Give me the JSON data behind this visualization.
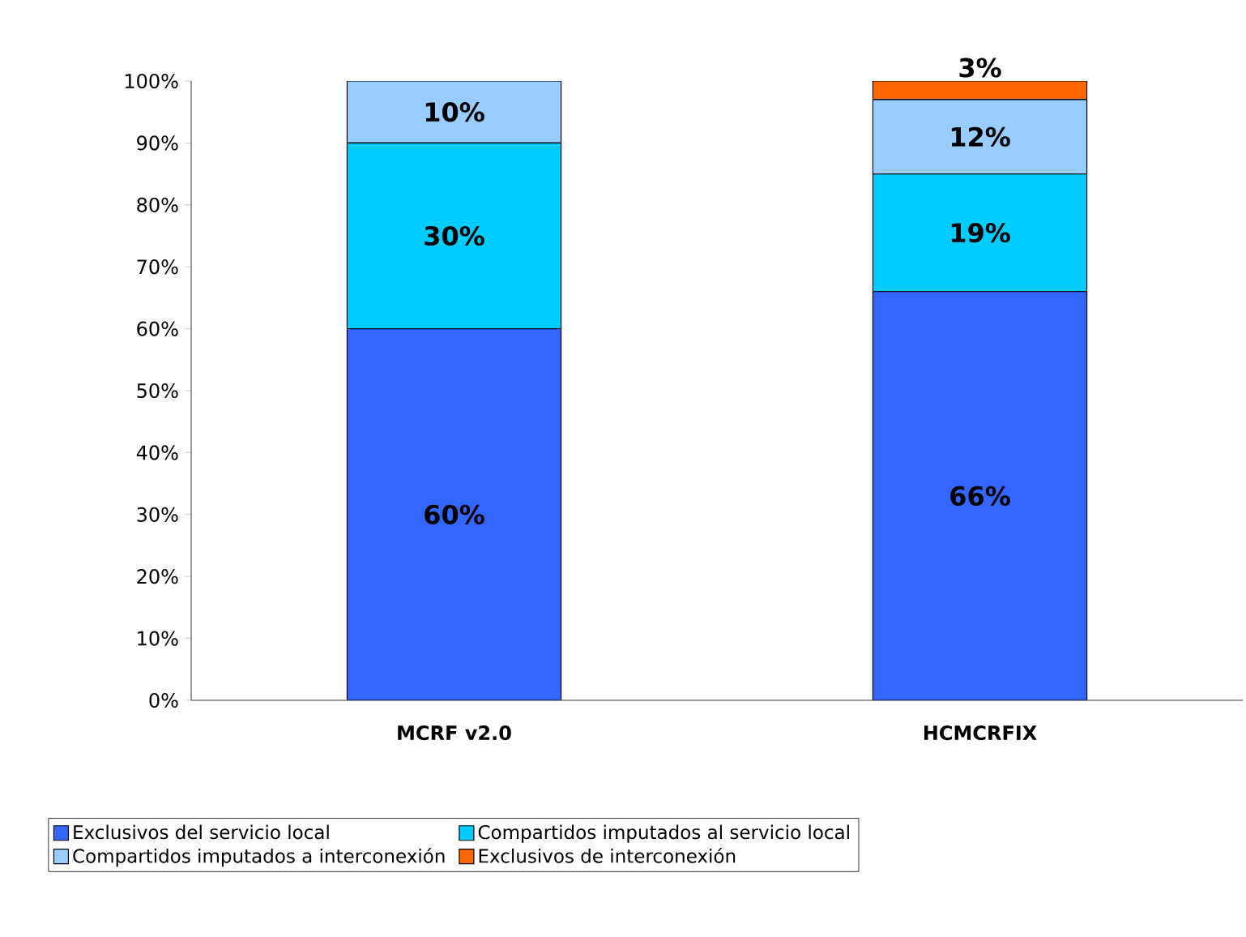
{
  "chart_data": {
    "type": "bar",
    "stacked": true,
    "categories": [
      "MCRF v2.0",
      "HCMCRFIX"
    ],
    "series": [
      {
        "name": "Exclusivos del servicio local",
        "color": "#3366ff",
        "values": [
          60,
          66
        ],
        "value_labels": [
          "60%",
          "66%"
        ]
      },
      {
        "name": "Compartidos imputados al servicio local",
        "color": "#00ccff",
        "values": [
          30,
          19
        ],
        "value_labels": [
          "30%",
          "19%"
        ]
      },
      {
        "name": "Compartidos imputados a interconexión",
        "color": "#99ccff",
        "values": [
          10,
          12
        ],
        "value_labels": [
          "10%",
          "12%"
        ]
      },
      {
        "name": "Exclusivos de interconexión",
        "color": "#ff6600",
        "values": [
          0,
          3
        ],
        "value_labels": [
          null,
          "3%"
        ]
      }
    ],
    "ylim": [
      0,
      100
    ],
    "yticks": [
      {
        "value": 0,
        "label": "0%"
      },
      {
        "value": 10,
        "label": "10%"
      },
      {
        "value": 20,
        "label": "20%"
      },
      {
        "value": 30,
        "label": "30%"
      },
      {
        "value": 40,
        "label": "40%"
      },
      {
        "value": 50,
        "label": "50%"
      },
      {
        "value": 60,
        "label": "60%"
      },
      {
        "value": 70,
        "label": "70%"
      },
      {
        "value": 80,
        "label": "80%"
      },
      {
        "value": 90,
        "label": "90%"
      },
      {
        "value": 100,
        "label": "100%"
      }
    ],
    "grid": false,
    "legend": "bottom"
  }
}
